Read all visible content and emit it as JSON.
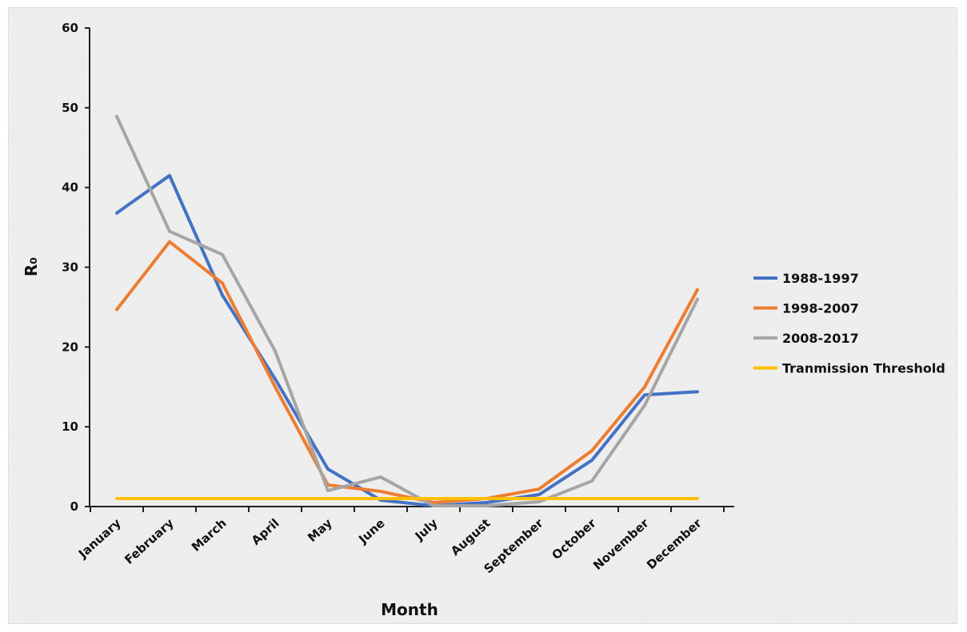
{
  "chart_data": {
    "type": "line",
    "xlabel": "Month",
    "ylabel": "R₀",
    "ylim": [
      0,
      60
    ],
    "yticks": [
      0,
      10,
      20,
      30,
      40,
      50,
      60
    ],
    "grid": false,
    "legend_position": "right",
    "categories": [
      "January",
      "February",
      "March",
      "April",
      "May",
      "June",
      "July",
      "August",
      "September",
      "October",
      "November",
      "December"
    ],
    "series": [
      {
        "name": "1988-1997",
        "color": "#4472c4",
        "values": [
          36.8,
          41.5,
          26.5,
          16.0,
          4.7,
          0.8,
          0.1,
          0.5,
          1.5,
          5.8,
          14.0,
          14.4
        ]
      },
      {
        "name": "1998-2007",
        "color": "#ed7d31",
        "values": [
          24.7,
          33.2,
          28.0,
          15.0,
          2.7,
          1.9,
          0.5,
          1.0,
          2.2,
          7.0,
          15.0,
          27.2
        ]
      },
      {
        "name": "2008-2017",
        "color": "#a5a5a5",
        "values": [
          48.9,
          34.5,
          31.6,
          19.5,
          2.0,
          3.7,
          0.1,
          0.1,
          0.6,
          3.2,
          12.7,
          26.0
        ]
      },
      {
        "name": "Tranmission Threshold",
        "color": "#ffc000",
        "values": [
          1,
          1,
          1,
          1,
          1,
          1,
          1,
          1,
          1,
          1,
          1,
          1
        ]
      }
    ]
  }
}
